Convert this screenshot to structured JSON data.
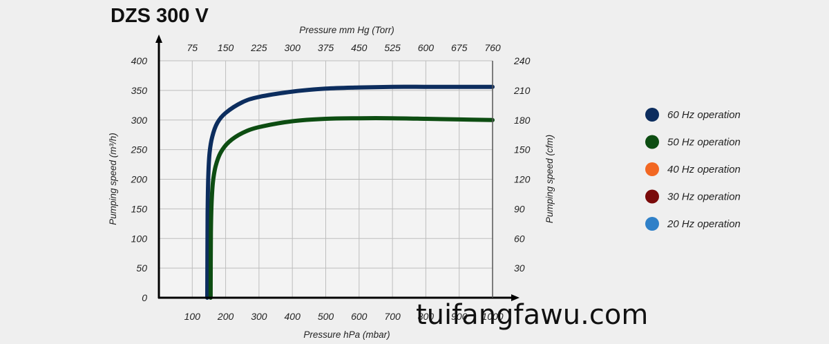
{
  "chart_data": {
    "type": "line",
    "title": "DZS 300 V",
    "xlabel": "Pressure hPa (mbar)",
    "xlabel_top": "Pressure mm Hg (Torr)",
    "ylabel": "Pumping speed (m³/h)",
    "ylabel_right": "Pumping speed (cfm)",
    "xlim": [
      0,
      1000
    ],
    "ylim": [
      0,
      400
    ],
    "x_ticks": [
      "100",
      "200",
      "300",
      "400",
      "500",
      "600",
      "700",
      "800",
      "900",
      "1000"
    ],
    "x_tick_values": [
      100,
      200,
      300,
      400,
      500,
      600,
      700,
      800,
      900,
      1000
    ],
    "x_ticks_top": [
      "75",
      "150",
      "225",
      "300",
      "375",
      "450",
      "525",
      "600",
      "675",
      "760"
    ],
    "y_ticks": [
      "0",
      "50",
      "100",
      "150",
      "200",
      "250",
      "300",
      "350",
      "400"
    ],
    "y_ticks_right": [
      "30",
      "60",
      "90",
      "120",
      "150",
      "180",
      "210",
      "240"
    ],
    "grid": true,
    "legend_position": "right",
    "series": [
      {
        "name": "60 Hz operation",
        "color": "#0c2d5e",
        "x": [
          145,
          146,
          148,
          152,
          160,
          175,
          200,
          250,
          300,
          400,
          500,
          600,
          700,
          800,
          900,
          1000
        ],
        "y": [
          0,
          140,
          205,
          245,
          272,
          295,
          312,
          330,
          339,
          348,
          353,
          355,
          356,
          356,
          356,
          356
        ]
      },
      {
        "name": "50 Hz operation",
        "color": "#0d4d12",
        "x": [
          155,
          156,
          158,
          162,
          170,
          185,
          210,
          250,
          300,
          400,
          500,
          600,
          700,
          800,
          900,
          1000
        ],
        "y": [
          0,
          110,
          160,
          195,
          222,
          245,
          263,
          278,
          288,
          298,
          302,
          303,
          303,
          302,
          301,
          300
        ]
      },
      {
        "name": "40 Hz operation",
        "color": "#f26722",
        "x": [],
        "y": []
      },
      {
        "name": "30 Hz operation",
        "color": "#7a0a0a",
        "x": [],
        "y": []
      },
      {
        "name": "20 Hz operation",
        "color": "#2f80c8",
        "x": [],
        "y": []
      }
    ]
  },
  "watermark": "tuifangfawu.com"
}
